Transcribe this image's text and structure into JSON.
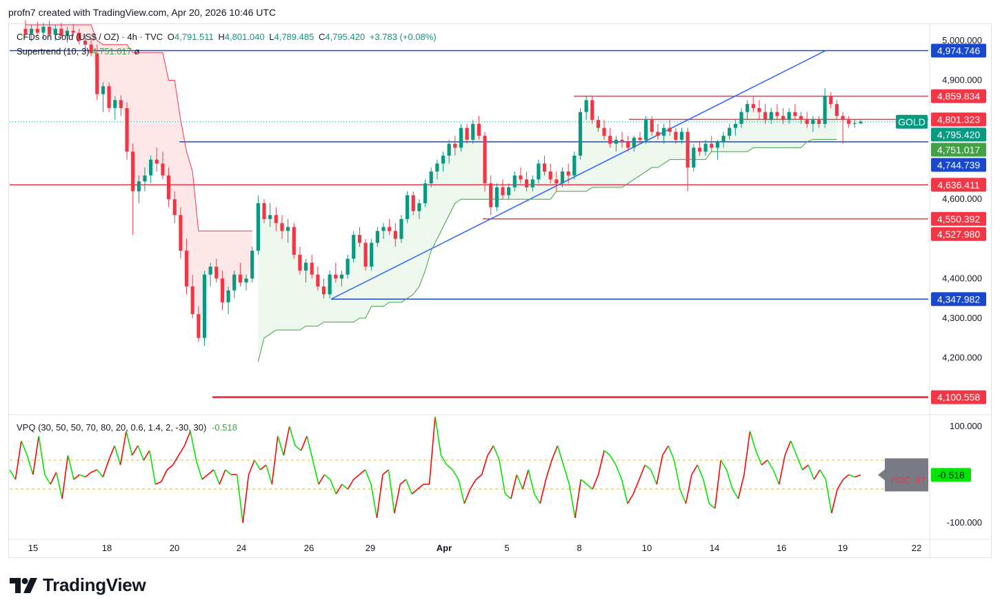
{
  "header": {
    "credit": "profn7 created with TradingView.com, Apr 20, 2026 10:46 UTC"
  },
  "legend": {
    "symbol": "CFDs on Gold (US$ / OZ) · 4h · TVC",
    "open_label": "O",
    "open": "4,791.511",
    "high_label": "H",
    "high": "4,801.040",
    "low_label": "L",
    "low": "4,789.485",
    "close_label": "C",
    "close": "4,795.420",
    "change": "+3.783 (+0.08%)",
    "supertrend_label": "Supertrend (10, 3)",
    "supertrend_value": "4,751.017",
    "supertrend_extra": "ø"
  },
  "indicator_legend": {
    "label": "VPQ (30, 50, 50, 70, 80, 20, 0.6, 1.4, 2, -30, 30)",
    "value": "-0.518"
  },
  "price_axis": {
    "ticks": [
      "5,000.000",
      "4,900.000",
      "4,600.000",
      "4,400.000",
      "4,300.000",
      "4,200.000"
    ],
    "ticks_values": [
      5000,
      4900,
      4600,
      4400,
      4300,
      4200
    ]
  },
  "price_tags": [
    {
      "text": "4,974.746",
      "value": 4974.746,
      "color": "#1848cc"
    },
    {
      "text": "4,859.834",
      "value": 4859.834,
      "color": "#f23645"
    },
    {
      "text": "4,801.323",
      "value": 4801.323,
      "color": "#f23645"
    },
    {
      "text": "4,795.420",
      "value": 4795.42,
      "color": "#089981"
    },
    {
      "text": "4,751.017",
      "value": 4751.017,
      "color": "#43a047"
    },
    {
      "text": "4,744.739",
      "value": 4744.739,
      "color": "#1848cc"
    },
    {
      "text": "4,636.411",
      "value": 4636.411,
      "color": "#f23645"
    },
    {
      "text": "4,550.392",
      "value": 4550.392,
      "color": "#f23645"
    },
    {
      "text": "4,527.980",
      "value": 4527.98,
      "color": "#f23645"
    },
    {
      "text": "4,347.982",
      "value": 4347.982,
      "color": "#1848cc"
    },
    {
      "text": "4,100.558",
      "value": 4100.558,
      "color": "#f23645"
    }
  ],
  "symbol_tag": "GOLD",
  "indicator_axis": {
    "ticks": [
      "100.000",
      "-100.000"
    ],
    "current": "-0.518",
    "poc_label": "POC: 47"
  },
  "time_axis": {
    "labels": [
      "15",
      "18",
      "20",
      "24",
      "26",
      "29",
      "Apr",
      "5",
      "8",
      "10",
      "14",
      "16",
      "19",
      "22"
    ],
    "bold": "Apr"
  },
  "chart_data": {
    "type": "candlestick",
    "title": "CFDs on Gold (US$ / OZ)",
    "timeframe": "4h",
    "source": "TVC",
    "price_range": [
      4060,
      5040
    ],
    "horizontal_levels": {
      "blue": [
        4974.746,
        4744.739,
        4347.982
      ],
      "red": [
        4859.834,
        4801.323,
        4636.411,
        4550.392,
        4100.558
      ]
    },
    "trendline_points": [
      [
        4347.982,
        "Mar 27"
      ],
      [
        4974.746,
        "Apr 18"
      ]
    ],
    "x_axis_dates": [
      "15",
      "18",
      "20",
      "24",
      "26",
      "29",
      "Apr",
      "5",
      "8",
      "10",
      "14",
      "16",
      "19",
      "22"
    ],
    "candles": [
      [
        5030,
        5052,
        5010,
        5018
      ],
      [
        5018,
        5040,
        4998,
        5030
      ],
      [
        5030,
        5048,
        5012,
        5020
      ],
      [
        5020,
        5045,
        5005,
        5035
      ],
      [
        5035,
        5050,
        5010,
        5015
      ],
      [
        5015,
        5040,
        5000,
        5030
      ],
      [
        5030,
        5045,
        5008,
        5012
      ],
      [
        5012,
        5035,
        4995,
        5025
      ],
      [
        5025,
        5042,
        5010,
        5020
      ],
      [
        5020,
        5030,
        4990,
        5000
      ],
      [
        5000,
        5015,
        4975,
        4990
      ],
      [
        4990,
        5005,
        4960,
        4968
      ],
      [
        4968,
        4990,
        4850,
        4865
      ],
      [
        4865,
        4895,
        4820,
        4885
      ],
      [
        4885,
        4895,
        4820,
        4830
      ],
      [
        4830,
        4860,
        4800,
        4850
      ],
      [
        4850,
        4862,
        4810,
        4830
      ],
      [
        4830,
        4845,
        4700,
        4720
      ],
      [
        4720,
        4740,
        4510,
        4620
      ],
      [
        4620,
        4660,
        4590,
        4645
      ],
      [
        4645,
        4680,
        4620,
        4660
      ],
      [
        4660,
        4710,
        4640,
        4700
      ],
      [
        4700,
        4730,
        4670,
        4690
      ],
      [
        4690,
        4720,
        4650,
        4660
      ],
      [
        4660,
        4680,
        4580,
        4600
      ],
      [
        4600,
        4620,
        4540,
        4560
      ],
      [
        4560,
        4580,
        4450,
        4470
      ],
      [
        4470,
        4500,
        4360,
        4380
      ],
      [
        4380,
        4410,
        4300,
        4310
      ],
      [
        4310,
        4330,
        4240,
        4250
      ],
      [
        4250,
        4420,
        4230,
        4410
      ],
      [
        4410,
        4440,
        4380,
        4430
      ],
      [
        4430,
        4450,
        4390,
        4400
      ],
      [
        4400,
        4420,
        4320,
        4340
      ],
      [
        4340,
        4380,
        4310,
        4370
      ],
      [
        4370,
        4420,
        4350,
        4410
      ],
      [
        4410,
        4440,
        4380,
        4390
      ],
      [
        4390,
        4410,
        4370,
        4400
      ],
      [
        4400,
        4480,
        4390,
        4470
      ],
      [
        4470,
        4610,
        4460,
        4590
      ],
      [
        4590,
        4600,
        4540,
        4550
      ],
      [
        4550,
        4590,
        4530,
        4560
      ],
      [
        4560,
        4580,
        4520,
        4540
      ],
      [
        4540,
        4560,
        4500,
        4520
      ],
      [
        4520,
        4550,
        4490,
        4530
      ],
      [
        4530,
        4540,
        4450,
        4460
      ],
      [
        4460,
        4480,
        4410,
        4420
      ],
      [
        4420,
        4450,
        4390,
        4440
      ],
      [
        4440,
        4460,
        4400,
        4410
      ],
      [
        4410,
        4430,
        4370,
        4380
      ],
      [
        4380,
        4400,
        4350,
        4360
      ],
      [
        4360,
        4420,
        4350,
        4410
      ],
      [
        4410,
        4440,
        4390,
        4400
      ],
      [
        4400,
        4420,
        4380,
        4410
      ],
      [
        4410,
        4460,
        4400,
        4450
      ],
      [
        4450,
        4520,
        4440,
        4510
      ],
      [
        4510,
        4530,
        4480,
        4490
      ],
      [
        4490,
        4500,
        4420,
        4430
      ],
      [
        4430,
        4500,
        4420,
        4490
      ],
      [
        4490,
        4530,
        4480,
        4520
      ],
      [
        4520,
        4540,
        4500,
        4530
      ],
      [
        4530,
        4550,
        4510,
        4520
      ],
      [
        4520,
        4540,
        4480,
        4500
      ],
      [
        4500,
        4560,
        4490,
        4550
      ],
      [
        4550,
        4620,
        4540,
        4610
      ],
      [
        4610,
        4620,
        4560,
        4570
      ],
      [
        4570,
        4600,
        4550,
        4590
      ],
      [
        4590,
        4650,
        4580,
        4640
      ],
      [
        4640,
        4680,
        4630,
        4670
      ],
      [
        4670,
        4700,
        4650,
        4690
      ],
      [
        4690,
        4720,
        4670,
        4710
      ],
      [
        4710,
        4750,
        4690,
        4740
      ],
      [
        4740,
        4760,
        4710,
        4730
      ],
      [
        4730,
        4790,
        4720,
        4780
      ],
      [
        4780,
        4790,
        4740,
        4750
      ],
      [
        4750,
        4800,
        4740,
        4790
      ],
      [
        4790,
        4810,
        4750,
        4760
      ],
      [
        4760,
        4770,
        4620,
        4640
      ],
      [
        4640,
        4660,
        4560,
        4580
      ],
      [
        4580,
        4640,
        4570,
        4630
      ],
      [
        4630,
        4650,
        4600,
        4610
      ],
      [
        4610,
        4640,
        4600,
        4630
      ],
      [
        4630,
        4670,
        4620,
        4660
      ],
      [
        4660,
        4680,
        4640,
        4650
      ],
      [
        4650,
        4670,
        4620,
        4630
      ],
      [
        4630,
        4660,
        4620,
        4650
      ],
      [
        4650,
        4700,
        4640,
        4690
      ],
      [
        4690,
        4710,
        4660,
        4670
      ],
      [
        4670,
        4690,
        4640,
        4650
      ],
      [
        4650,
        4670,
        4620,
        4640
      ],
      [
        4640,
        4680,
        4630,
        4670
      ],
      [
        4670,
        4690,
        4640,
        4660
      ],
      [
        4660,
        4720,
        4650,
        4710
      ],
      [
        4710,
        4830,
        4700,
        4820
      ],
      [
        4820,
        4860,
        4800,
        4850
      ],
      [
        4850,
        4860,
        4790,
        4800
      ],
      [
        4800,
        4810,
        4770,
        4780
      ],
      [
        4780,
        4800,
        4750,
        4760
      ],
      [
        4760,
        4780,
        4730,
        4740
      ],
      [
        4740,
        4760,
        4720,
        4750
      ],
      [
        4750,
        4770,
        4730,
        4745
      ],
      [
        4745,
        4760,
        4720,
        4730
      ],
      [
        4730,
        4760,
        4720,
        4755
      ],
      [
        4755,
        4770,
        4740,
        4750
      ],
      [
        4750,
        4810,
        4740,
        4800
      ],
      [
        4800,
        4810,
        4760,
        4770
      ],
      [
        4770,
        4790,
        4750,
        4760
      ],
      [
        4760,
        4790,
        4740,
        4780
      ],
      [
        4780,
        4800,
        4760,
        4770
      ],
      [
        4770,
        4780,
        4740,
        4750
      ],
      [
        4750,
        4780,
        4740,
        4770
      ],
      [
        4770,
        4780,
        4620,
        4680
      ],
      [
        4680,
        4740,
        4670,
        4730
      ],
      [
        4730,
        4745,
        4710,
        4720
      ],
      [
        4720,
        4750,
        4710,
        4740
      ],
      [
        4740,
        4760,
        4720,
        4730
      ],
      [
        4730,
        4750,
        4700,
        4745
      ],
      [
        4745,
        4770,
        4730,
        4760
      ],
      [
        4760,
        4790,
        4750,
        4780
      ],
      [
        4780,
        4800,
        4760,
        4790
      ],
      [
        4790,
        4830,
        4780,
        4820
      ],
      [
        4820,
        4850,
        4800,
        4840
      ],
      [
        4840,
        4860,
        4820,
        4830
      ],
      [
        4830,
        4850,
        4800,
        4820
      ],
      [
        4820,
        4840,
        4790,
        4800
      ],
      [
        4800,
        4830,
        4790,
        4820
      ],
      [
        4820,
        4840,
        4800,
        4810
      ],
      [
        4810,
        4830,
        4790,
        4800
      ],
      [
        4800,
        4830,
        4790,
        4820
      ],
      [
        4820,
        4840,
        4800,
        4810
      ],
      [
        4810,
        4820,
        4790,
        4800
      ],
      [
        4800,
        4820,
        4780,
        4790
      ],
      [
        4790,
        4810,
        4770,
        4800
      ],
      [
        4800,
        4810,
        4780,
        4790
      ],
      [
        4790,
        4880,
        4780,
        4860
      ],
      [
        4860,
        4870,
        4830,
        4840
      ],
      [
        4840,
        4850,
        4800,
        4810
      ],
      [
        4810,
        4820,
        4740,
        4800
      ],
      [
        4800,
        4810,
        4780,
        4790
      ],
      [
        4790,
        4800,
        4780,
        4792
      ],
      [
        4791.511,
        4801.04,
        4789.485,
        4795.42
      ]
    ],
    "supertrend": [
      5040,
      5040,
      5040,
      5040,
      5040,
      5040,
      5040,
      5040,
      5040,
      5040,
      5040,
      5040,
      5000,
      4990,
      4990,
      4990,
      4990,
      4990,
      4970,
      4970,
      4970,
      4970,
      4970,
      4970,
      4900,
      4900,
      4800,
      4720,
      4670,
      4520,
      4520,
      4520,
      4520,
      4520,
      4520,
      4520,
      4520,
      4520,
      4520,
      4190,
      4250,
      4260,
      4270,
      4270,
      4270,
      4270,
      4270,
      4280,
      4280,
      4280,
      4290,
      4290,
      4290,
      4290,
      4290,
      4290,
      4300,
      4300,
      4330,
      4330,
      4330,
      4340,
      4340,
      4340,
      4350,
      4360,
      4380,
      4420,
      4470,
      4500,
      4530,
      4560,
      4590,
      4600,
      4600,
      4600,
      4600,
      4600,
      4600,
      4600,
      4600,
      4600,
      4600,
      4600,
      4600,
      4600,
      4600,
      4600,
      4600,
      4620,
      4620,
      4620,
      4620,
      4620,
      4620,
      4630,
      4630,
      4630,
      4630,
      4630,
      4630,
      4640,
      4650,
      4660,
      4670,
      4680,
      4680,
      4690,
      4700,
      4700,
      4700,
      4700,
      4700,
      4700,
      4700,
      4720,
      4720,
      4720,
      4720,
      4720,
      4720,
      4720,
      4730,
      4730,
      4730,
      4730,
      4730,
      4730,
      4730,
      4730,
      4730,
      4745,
      4751,
      4751,
      4751,
      4751,
      4751.017
    ],
    "vpq": [
      10,
      -10,
      70,
      40,
      0,
      80,
      0,
      -20,
      5,
      -50,
      40,
      -10,
      0,
      -5,
      5,
      10,
      -5,
      30,
      60,
      20,
      90,
      40,
      60,
      30,
      50,
      -20,
      -15,
      10,
      20,
      40,
      60,
      90,
      30,
      -10,
      0,
      10,
      -20,
      10,
      0,
      0,
      -100,
      0,
      30,
      10,
      20,
      -20,
      80,
      40,
      100,
      60,
      50,
      80,
      30,
      -20,
      0,
      -10,
      -40,
      -20,
      -30,
      -10,
      0,
      10,
      -20,
      -90,
      0,
      10,
      -80,
      -20,
      -10,
      -40,
      -30,
      -20,
      -20,
      120,
      40,
      20,
      10,
      -10,
      -60,
      -30,
      -10,
      0,
      40,
      60,
      30,
      -40,
      -50,
      0,
      -30,
      10,
      -40,
      -60,
      -10,
      30,
      60,
      20,
      -20,
      -90,
      -10,
      -20,
      -30,
      0,
      50,
      40,
      20,
      -10,
      -60,
      -40,
      -10,
      20,
      10,
      -20,
      40,
      60,
      30,
      -30,
      -60,
      0,
      20,
      -10,
      -60,
      -70,
      30,
      10,
      -30,
      -50,
      0,
      90,
      50,
      20,
      30,
      10,
      -20,
      40,
      70,
      40,
      10,
      20,
      -10,
      10,
      -10,
      -80,
      -30,
      -10,
      0,
      -5,
      -0.518
    ]
  }
}
